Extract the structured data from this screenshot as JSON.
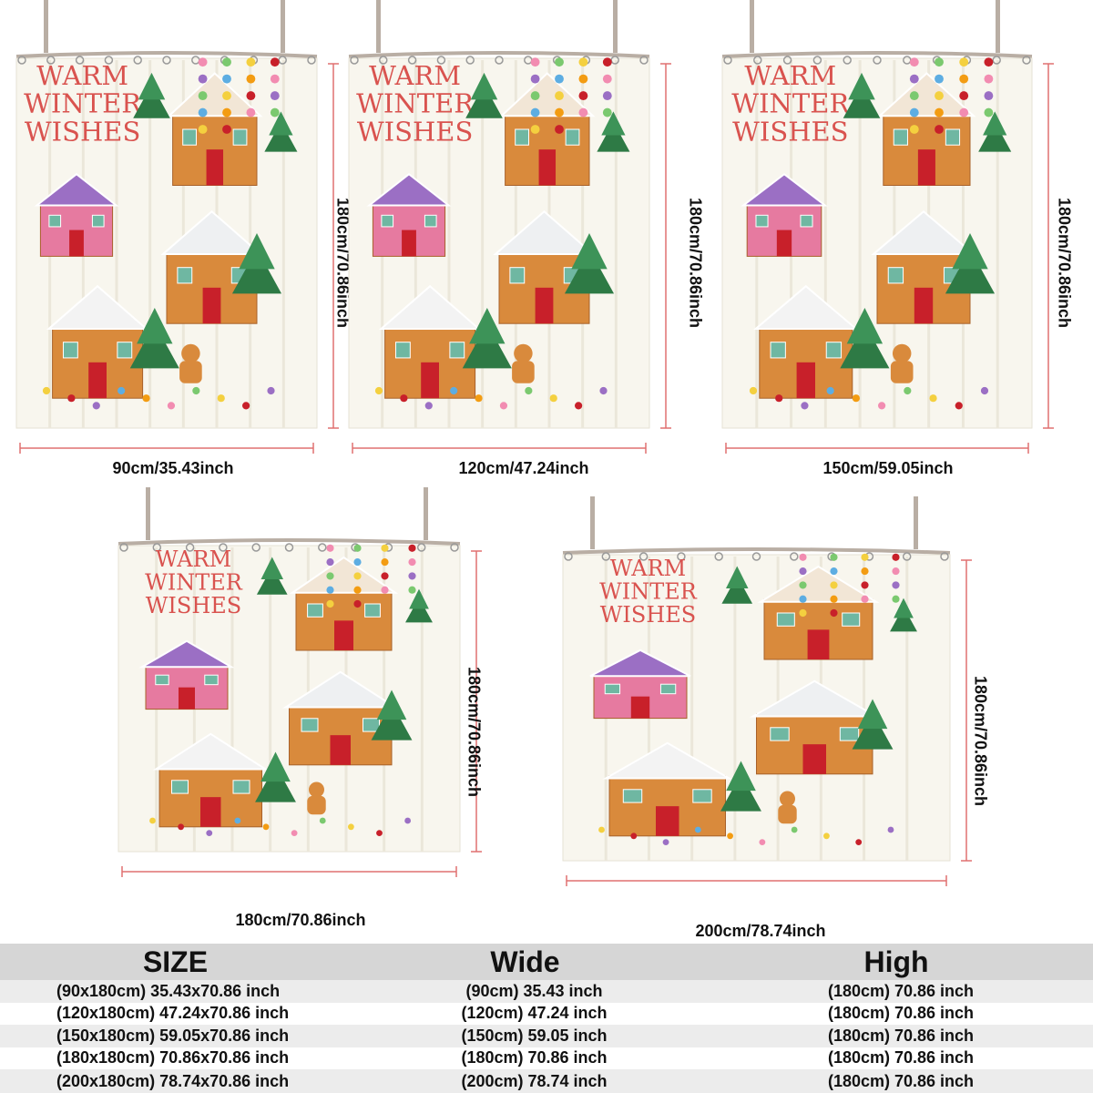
{
  "curtain_art": {
    "title_lines": [
      "WARM",
      "WINTER",
      "WISHES"
    ],
    "colors": {
      "fabric": "#f8f6ee",
      "title_red": "#d9534f",
      "gingerbread": "#d98a3c",
      "door_red": "#c8202a",
      "tree_green": "#2e7a45",
      "candy_pink": "#f28cb1",
      "gumdrop_purple": "#9b6fc4",
      "rod": "#b9aea4",
      "dimension_line": "#e07070"
    }
  },
  "panels": [
    {
      "width_label": "90cm/35.43inch",
      "height_label": "180cm/70.86inch"
    },
    {
      "width_label": "120cm/47.24inch",
      "height_label": "180cm/70.86inch"
    },
    {
      "width_label": "150cm/59.05inch",
      "height_label": "180cm/70.86inch"
    },
    {
      "width_label": "180cm/70.86inch",
      "height_label": "180cm/70.86inch"
    },
    {
      "width_label": "200cm/78.74inch",
      "height_label": "180cm/70.86inch"
    }
  ],
  "size_table": {
    "headers": [
      "SIZE",
      "Wide",
      "High"
    ],
    "rows": [
      [
        "(90x180cm) 35.43x70.86 inch",
        "(90cm) 35.43 inch",
        "(180cm) 70.86 inch"
      ],
      [
        "(120x180cm) 47.24x70.86 inch",
        "(120cm) 47.24 inch",
        "(180cm) 70.86 inch"
      ],
      [
        "(150x180cm) 59.05x70.86 inch",
        "(150cm) 59.05 inch",
        "(180cm) 70.86 inch"
      ],
      [
        "(180x180cm) 70.86x70.86 inch",
        "(180cm) 70.86 inch",
        "(180cm) 70.86 inch"
      ],
      [
        "(200x180cm) 78.74x70.86 inch",
        "(200cm) 78.74 inch",
        "(180cm) 70.86 inch"
      ]
    ]
  }
}
